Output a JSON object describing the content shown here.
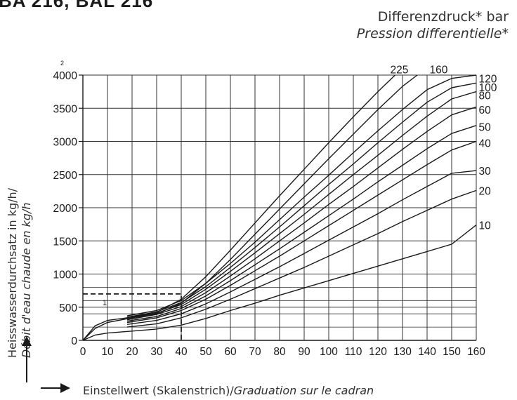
{
  "header": {
    "title": "BA 216, BAL 216"
  },
  "legend_title": {
    "line1": "Differenzdruck* bar",
    "line2": "Pression differentielle*"
  },
  "axis_titles": {
    "y_line1": "Heisswasserdurchsatz in kg/h/",
    "y_line2": "Débit d'eau chaude en kg/h",
    "x_plain": "Einstellwert (Skalenstrich)/",
    "x_italic": "Graduation sur le cadran"
  },
  "colors": {
    "ink": "#1a1a1a",
    "grid": "#333333",
    "background": "#ffffff"
  },
  "icons": [
    "arrow-up-icon",
    "arrow-right-icon"
  ],
  "chart_data": {
    "type": "line",
    "title": "",
    "xlabel": "Einstellwert (Skalenstrich)/Graduation sur le cadran",
    "ylabel": "Heisswasserdurchsatz in kg/h/Débit d'eau chaude en kg/h",
    "xlim": [
      0,
      160
    ],
    "ylim": [
      0,
      4000
    ],
    "x_ticks": [
      0,
      10,
      20,
      30,
      40,
      50,
      60,
      70,
      80,
      90,
      100,
      110,
      120,
      130,
      140,
      150,
      160
    ],
    "y_ticks": [
      0,
      500,
      1000,
      1500,
      2000,
      2500,
      3000,
      3500,
      4000
    ],
    "y_tick_labels": [
      "0",
      "500",
      "1000",
      "1500",
      "2000",
      "2500",
      "3000",
      "3500",
      "4000"
    ],
    "y_superscript": "2",
    "grid": true,
    "series_label_note": "curve labels are differential pressure in bar",
    "series": [
      {
        "name": "10",
        "points": [
          [
            0,
            0
          ],
          [
            5,
            80
          ],
          [
            10,
            110
          ],
          [
            20,
            140
          ],
          [
            30,
            170
          ],
          [
            40,
            230
          ],
          [
            50,
            330
          ],
          [
            60,
            450
          ],
          [
            70,
            560
          ],
          [
            80,
            680
          ],
          [
            90,
            790
          ],
          [
            100,
            900
          ],
          [
            110,
            1010
          ],
          [
            120,
            1120
          ],
          [
            130,
            1230
          ],
          [
            140,
            1340
          ],
          [
            150,
            1450
          ],
          [
            160,
            1740
          ]
        ]
      },
      {
        "name": "20",
        "points": [
          [
            18,
            200
          ],
          [
            30,
            250
          ],
          [
            40,
            340
          ],
          [
            50,
            470
          ],
          [
            60,
            620
          ],
          [
            70,
            780
          ],
          [
            80,
            940
          ],
          [
            90,
            1100
          ],
          [
            100,
            1270
          ],
          [
            110,
            1440
          ],
          [
            120,
            1610
          ],
          [
            130,
            1790
          ],
          [
            140,
            1960
          ],
          [
            150,
            2130
          ],
          [
            160,
            2260
          ]
        ]
      },
      {
        "name": "30",
        "points": [
          [
            18,
            240
          ],
          [
            30,
            300
          ],
          [
            40,
            400
          ],
          [
            50,
            550
          ],
          [
            60,
            730
          ],
          [
            70,
            920
          ],
          [
            80,
            1110
          ],
          [
            90,
            1310
          ],
          [
            100,
            1510
          ],
          [
            110,
            1710
          ],
          [
            120,
            1910
          ],
          [
            130,
            2120
          ],
          [
            140,
            2320
          ],
          [
            150,
            2520
          ],
          [
            160,
            2560
          ]
        ]
      },
      {
        "name": "40",
        "points": [
          [
            18,
            270
          ],
          [
            30,
            340
          ],
          [
            40,
            450
          ],
          [
            50,
            620
          ],
          [
            60,
            830
          ],
          [
            70,
            1050
          ],
          [
            80,
            1270
          ],
          [
            90,
            1500
          ],
          [
            100,
            1730
          ],
          [
            110,
            1960
          ],
          [
            120,
            2190
          ],
          [
            130,
            2420
          ],
          [
            140,
            2650
          ],
          [
            150,
            2870
          ],
          [
            160,
            3000
          ]
        ]
      },
      {
        "name": "50",
        "points": [
          [
            18,
            290
          ],
          [
            30,
            360
          ],
          [
            40,
            480
          ],
          [
            50,
            670
          ],
          [
            60,
            900
          ],
          [
            70,
            1140
          ],
          [
            80,
            1380
          ],
          [
            90,
            1630
          ],
          [
            100,
            1880
          ],
          [
            110,
            2130
          ],
          [
            120,
            2390
          ],
          [
            130,
            2640
          ],
          [
            140,
            2890
          ],
          [
            150,
            3120
          ],
          [
            160,
            3240
          ]
        ]
      },
      {
        "name": "60",
        "points": [
          [
            18,
            310
          ],
          [
            30,
            390
          ],
          [
            40,
            510
          ],
          [
            50,
            720
          ],
          [
            60,
            970
          ],
          [
            70,
            1230
          ],
          [
            80,
            1500
          ],
          [
            90,
            1770
          ],
          [
            100,
            2050
          ],
          [
            110,
            2320
          ],
          [
            120,
            2600
          ],
          [
            130,
            2880
          ],
          [
            140,
            3150
          ],
          [
            150,
            3400
          ],
          [
            160,
            3520
          ]
        ]
      },
      {
        "name": "80",
        "points": [
          [
            18,
            330
          ],
          [
            30,
            410
          ],
          [
            40,
            540
          ],
          [
            50,
            770
          ],
          [
            60,
            1040
          ],
          [
            70,
            1320
          ],
          [
            80,
            1610
          ],
          [
            90,
            1900
          ],
          [
            100,
            2200
          ],
          [
            110,
            2500
          ],
          [
            120,
            2790
          ],
          [
            130,
            3090
          ],
          [
            140,
            3380
          ],
          [
            150,
            3640
          ],
          [
            160,
            3750
          ]
        ]
      },
      {
        "name": "100",
        "points": [
          [
            18,
            350
          ],
          [
            30,
            430
          ],
          [
            40,
            570
          ],
          [
            50,
            810
          ],
          [
            60,
            1100
          ],
          [
            70,
            1400
          ],
          [
            80,
            1710
          ],
          [
            90,
            2030
          ],
          [
            100,
            2350
          ],
          [
            110,
            2660
          ],
          [
            120,
            2980
          ],
          [
            130,
            3290
          ],
          [
            140,
            3590
          ],
          [
            150,
            3810
          ],
          [
            160,
            3880
          ]
        ]
      },
      {
        "name": "120",
        "points": [
          [
            18,
            370
          ],
          [
            30,
            450
          ],
          [
            40,
            600
          ],
          [
            50,
            860
          ],
          [
            60,
            1160
          ],
          [
            70,
            1480
          ],
          [
            80,
            1820
          ],
          [
            90,
            2160
          ],
          [
            100,
            2490
          ],
          [
            110,
            2830
          ],
          [
            120,
            3160
          ],
          [
            130,
            3480
          ],
          [
            140,
            3780
          ],
          [
            150,
            3950
          ],
          [
            160,
            4000
          ]
        ]
      },
      {
        "name": "160",
        "points": [
          [
            0,
            0
          ],
          [
            5,
            180
          ],
          [
            10,
            270
          ],
          [
            20,
            340
          ],
          [
            30,
            400
          ],
          [
            40,
            560
          ],
          [
            50,
            860
          ],
          [
            60,
            1220
          ],
          [
            70,
            1600
          ],
          [
            80,
            1980
          ],
          [
            90,
            2360
          ],
          [
            100,
            2740
          ],
          [
            110,
            3110
          ],
          [
            120,
            3480
          ],
          [
            130,
            3830
          ],
          [
            136,
            4000
          ]
        ]
      },
      {
        "name": "225",
        "points": [
          [
            0,
            0
          ],
          [
            5,
            220
          ],
          [
            10,
            300
          ],
          [
            20,
            350
          ],
          [
            30,
            420
          ],
          [
            40,
            620
          ],
          [
            50,
            960
          ],
          [
            60,
            1360
          ],
          [
            70,
            1770
          ],
          [
            80,
            2180
          ],
          [
            90,
            2580
          ],
          [
            100,
            2980
          ],
          [
            110,
            3370
          ],
          [
            120,
            3750
          ],
          [
            127,
            4000
          ]
        ]
      }
    ],
    "series_label_positions_data_units": [
      {
        "name": "225",
        "x": 125,
        "y": 4090
      },
      {
        "name": "160",
        "x": 141,
        "y": 4090
      },
      {
        "name": "120",
        "x": 161,
        "y": 3950
      },
      {
        "name": "100",
        "x": 161,
        "y": 3820
      },
      {
        "name": "80",
        "x": 161,
        "y": 3700
      },
      {
        "name": "60",
        "x": 161,
        "y": 3480
      },
      {
        "name": "50",
        "x": 161,
        "y": 3220
      },
      {
        "name": "40",
        "x": 161,
        "y": 2980
      },
      {
        "name": "30",
        "x": 161,
        "y": 2560
      },
      {
        "name": "20",
        "x": 161,
        "y": 2260
      },
      {
        "name": "10",
        "x": 161,
        "y": 1740
      }
    ],
    "annotations": [
      {
        "type": "guide_line",
        "description": "dashed line: horizontal at 700, vertical at 40",
        "y": 700,
        "x": 40,
        "label": "1"
      }
    ]
  }
}
